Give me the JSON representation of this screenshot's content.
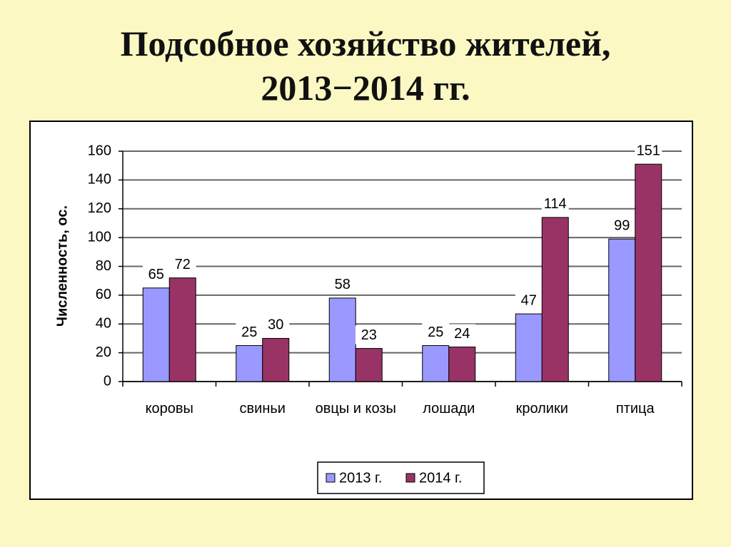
{
  "chart_data": {
    "type": "bar",
    "title": "Подсобное хозяйство жителей, 2013−2014 гг.",
    "y_label": "Численность, ос.",
    "categories": [
      "коровы",
      "свиньи",
      "овцы и козы",
      "лошади",
      "кролики",
      "птица"
    ],
    "series": [
      {
        "name": "2013 г.",
        "color": "#9999ff",
        "values": [
          65,
          25,
          58,
          25,
          47,
          99
        ]
      },
      {
        "name": "2014 г.",
        "color": "#993366",
        "values": [
          72,
          30,
          23,
          24,
          114,
          151
        ]
      }
    ],
    "ylim": [
      0,
      160
    ],
    "yticks": [
      0,
      20,
      40,
      60,
      80,
      100,
      120,
      140,
      160
    ],
    "grid": true,
    "legend": "bottom"
  }
}
